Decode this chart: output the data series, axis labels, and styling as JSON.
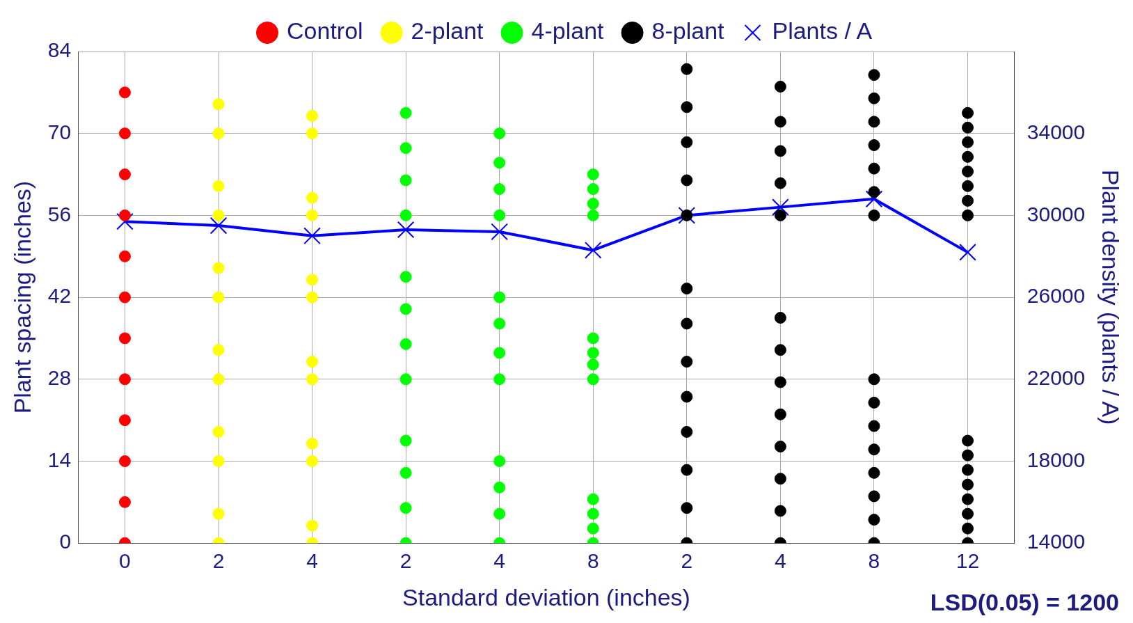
{
  "chart_data": {
    "type": "scatter",
    "xlabel": "Standard deviation (inches)",
    "ylabel": "Plant spacing (inches)",
    "y2label": "Plant density (plants / A)",
    "categories": [
      "0",
      "2",
      "4",
      "2",
      "4",
      "8",
      "2",
      "4",
      "8",
      "12"
    ],
    "ylim": [
      0,
      84
    ],
    "yticks": [
      0,
      14,
      28,
      42,
      56,
      70,
      84
    ],
    "y2lim": [
      14000,
      38000
    ],
    "y2ticks": [
      14000,
      18000,
      22000,
      26000,
      30000,
      34000
    ],
    "grid": true,
    "legend": "top",
    "marker": "circle",
    "annotations": [
      "LSD(0.05) = 1200"
    ],
    "series": [
      {
        "name": "Control",
        "color": "#ff0000",
        "values": [
          0,
          null,
          null,
          null,
          null,
          null,
          null,
          null,
          null,
          null
        ]
      },
      {
        "color": "#ff0000",
        "values": [
          7,
          null,
          null,
          null,
          null,
          null,
          null,
          null,
          null,
          null
        ]
      },
      {
        "color": "#ff0000",
        "values": [
          14,
          null,
          null,
          null,
          null,
          null,
          null,
          null,
          null,
          null
        ]
      },
      {
        "color": "#ff0000",
        "values": [
          21,
          null,
          null,
          null,
          null,
          null,
          null,
          null,
          null,
          null
        ]
      },
      {
        "color": "#ff0000",
        "values": [
          28,
          null,
          null,
          null,
          null,
          null,
          null,
          null,
          null,
          null
        ]
      },
      {
        "color": "#ff0000",
        "values": [
          35,
          null,
          null,
          null,
          null,
          null,
          null,
          null,
          null,
          null
        ]
      },
      {
        "color": "#ff0000",
        "values": [
          42,
          null,
          null,
          null,
          null,
          null,
          null,
          null,
          null,
          null
        ]
      },
      {
        "color": "#ff0000",
        "values": [
          49,
          null,
          null,
          null,
          null,
          null,
          null,
          null,
          null,
          null
        ]
      },
      {
        "color": "#ff0000",
        "values": [
          56,
          null,
          null,
          null,
          null,
          null,
          null,
          null,
          null,
          null
        ]
      },
      {
        "color": "#ff0000",
        "values": [
          63,
          null,
          null,
          null,
          null,
          null,
          null,
          null,
          null,
          null
        ]
      },
      {
        "color": "#ff0000",
        "values": [
          70,
          null,
          null,
          null,
          null,
          null,
          null,
          null,
          null,
          null
        ]
      },
      {
        "color": "#ff0000",
        "values": [
          77,
          null,
          null,
          null,
          null,
          null,
          null,
          null,
          null,
          null
        ]
      },
      {
        "name": "2-plant",
        "color": "#ffff00",
        "values": [
          null,
          0,
          0,
          null,
          null,
          null,
          null,
          null,
          null,
          null
        ]
      },
      {
        "color": "#ffff00",
        "values": [
          null,
          5,
          3,
          null,
          null,
          null,
          null,
          null,
          null,
          null
        ]
      },
      {
        "color": "#ffff00",
        "values": [
          null,
          14,
          14,
          null,
          null,
          null,
          null,
          null,
          null,
          null
        ]
      },
      {
        "color": "#ffff00",
        "values": [
          null,
          19,
          17,
          null,
          null,
          null,
          null,
          null,
          null,
          null
        ]
      },
      {
        "color": "#ffff00",
        "values": [
          null,
          28,
          28,
          null,
          null,
          null,
          null,
          null,
          null,
          null
        ]
      },
      {
        "color": "#ffff00",
        "values": [
          null,
          33,
          31,
          null,
          null,
          null,
          null,
          null,
          null,
          null
        ]
      },
      {
        "color": "#ffff00",
        "values": [
          null,
          42,
          42,
          null,
          null,
          null,
          null,
          null,
          null,
          null
        ]
      },
      {
        "color": "#ffff00",
        "values": [
          null,
          47,
          45,
          null,
          null,
          null,
          null,
          null,
          null,
          null
        ]
      },
      {
        "color": "#ffff00",
        "values": [
          null,
          56,
          56,
          null,
          null,
          null,
          null,
          null,
          null,
          null
        ]
      },
      {
        "color": "#ffff00",
        "values": [
          null,
          61,
          59,
          null,
          null,
          null,
          null,
          null,
          null,
          null
        ]
      },
      {
        "color": "#ffff00",
        "values": [
          null,
          70,
          70,
          null,
          null,
          null,
          null,
          null,
          null,
          null
        ]
      },
      {
        "color": "#ffff00",
        "values": [
          null,
          75,
          73,
          null,
          null,
          null,
          null,
          null,
          null,
          null
        ]
      },
      {
        "name": "4-plant",
        "color": "#00ff00",
        "values": [
          null,
          null,
          null,
          0,
          0,
          0,
          null,
          null,
          null,
          null
        ]
      },
      {
        "color": "#00ff00",
        "values": [
          null,
          null,
          null,
          6,
          5,
          2.5,
          null,
          null,
          null,
          null
        ]
      },
      {
        "color": "#00ff00",
        "values": [
          null,
          null,
          null,
          12,
          9.5,
          5,
          null,
          null,
          null,
          null
        ]
      },
      {
        "color": "#00ff00",
        "values": [
          null,
          null,
          null,
          17.5,
          14,
          7.5,
          null,
          null,
          null,
          null
        ]
      },
      {
        "color": "#00ff00",
        "values": [
          null,
          null,
          null,
          28,
          28,
          28,
          null,
          null,
          null,
          null
        ]
      },
      {
        "color": "#00ff00",
        "values": [
          null,
          null,
          null,
          34,
          32.5,
          30.5,
          null,
          null,
          null,
          null
        ]
      },
      {
        "color": "#00ff00",
        "values": [
          null,
          null,
          null,
          40,
          37.5,
          32.5,
          null,
          null,
          null,
          null
        ]
      },
      {
        "color": "#00ff00",
        "values": [
          null,
          null,
          null,
          45.5,
          42,
          35,
          null,
          null,
          null,
          null
        ]
      },
      {
        "color": "#00ff00",
        "values": [
          null,
          null,
          null,
          56,
          56,
          56,
          null,
          null,
          null,
          null
        ]
      },
      {
        "color": "#00ff00",
        "values": [
          null,
          null,
          null,
          62,
          60.5,
          58,
          null,
          null,
          null,
          null
        ]
      },
      {
        "color": "#00ff00",
        "values": [
          null,
          null,
          null,
          67.5,
          65,
          60.5,
          null,
          null,
          null,
          null
        ]
      },
      {
        "color": "#00ff00",
        "values": [
          null,
          null,
          null,
          73.5,
          70,
          63,
          null,
          null,
          null,
          null
        ]
      },
      {
        "name": "8-plant",
        "color": "#000000",
        "values": [
          null,
          null,
          null,
          null,
          null,
          null,
          0,
          0,
          0,
          0
        ]
      },
      {
        "color": "#000000",
        "values": [
          null,
          null,
          null,
          null,
          null,
          null,
          6,
          5.5,
          4,
          2.5
        ]
      },
      {
        "color": "#000000",
        "values": [
          null,
          null,
          null,
          null,
          null,
          null,
          12.5,
          11,
          8,
          5
        ]
      },
      {
        "color": "#000000",
        "values": [
          null,
          null,
          null,
          null,
          null,
          null,
          19,
          16.5,
          12,
          7.5
        ]
      },
      {
        "color": "#000000",
        "values": [
          null,
          null,
          null,
          null,
          null,
          null,
          25,
          22,
          16,
          10
        ]
      },
      {
        "color": "#000000",
        "values": [
          null,
          null,
          null,
          null,
          null,
          null,
          31,
          27.5,
          20,
          12.5
        ]
      },
      {
        "color": "#000000",
        "values": [
          null,
          null,
          null,
          null,
          null,
          null,
          37.5,
          33,
          24,
          15
        ]
      },
      {
        "color": "#000000",
        "values": [
          null,
          null,
          null,
          null,
          null,
          null,
          43.5,
          38.5,
          28,
          17.5
        ]
      },
      {
        "color": "#000000",
        "values": [
          null,
          null,
          null,
          null,
          null,
          null,
          56,
          56,
          56,
          56
        ]
      },
      {
        "color": "#000000",
        "values": [
          null,
          null,
          null,
          null,
          null,
          null,
          62,
          61.5,
          60,
          58.5
        ]
      },
      {
        "color": "#000000",
        "values": [
          null,
          null,
          null,
          null,
          null,
          null,
          68.5,
          67,
          64,
          61
        ]
      },
      {
        "color": "#000000",
        "values": [
          null,
          null,
          null,
          null,
          null,
          null,
          74.5,
          72,
          68,
          63.5
        ]
      },
      {
        "color": "#000000",
        "values": [
          null,
          null,
          null,
          null,
          null,
          null,
          81,
          78,
          72,
          66
        ]
      },
      {
        "color": "#000000",
        "values": [
          null,
          null,
          null,
          null,
          null,
          null,
          null,
          null,
          76,
          68.5
        ]
      },
      {
        "color": "#000000",
        "values": [
          null,
          null,
          null,
          null,
          null,
          null,
          null,
          null,
          80,
          71
        ]
      },
      {
        "color": "#000000",
        "values": [
          null,
          null,
          null,
          null,
          null,
          null,
          null,
          null,
          null,
          73.5
        ]
      },
      {
        "name": "Plants / A",
        "type": "line",
        "axis": "y2",
        "marker": "cross",
        "color": "#0000ff",
        "values": [
          29700,
          29500,
          29000,
          29300,
          29200,
          28300,
          30000,
          30400,
          30800,
          28200
        ]
      }
    ]
  }
}
